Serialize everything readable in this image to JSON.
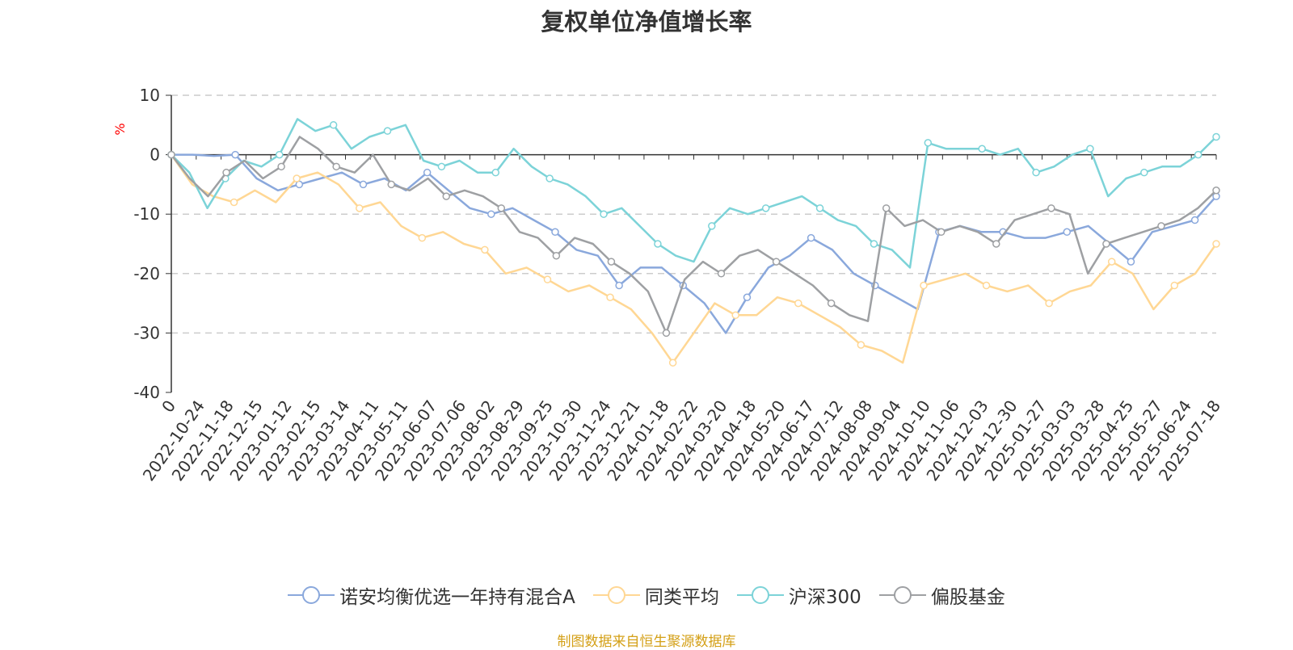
{
  "title": "复权单位净值增长率",
  "source": "制图数据来自恒生聚源数据库",
  "chart_data": {
    "type": "line",
    "ylabel": "%",
    "ylim": [
      -40,
      10
    ],
    "yticks": [
      10,
      0,
      -10,
      -20,
      -30,
      -40
    ],
    "grid": true,
    "legend_position": "bottom",
    "x_tick_labels": [
      "0",
      "2022-10-24",
      "2022-11-18",
      "2022-12-15",
      "2023-01-12",
      "2023-02-15",
      "2023-03-14",
      "2023-04-11",
      "2023-05-11",
      "2023-06-07",
      "2023-07-06",
      "2023-08-02",
      "2023-08-29",
      "2023-09-25",
      "2023-10-30",
      "2023-11-24",
      "2023-12-21",
      "2024-01-18",
      "2024-02-22",
      "2024-03-20",
      "2024-04-18",
      "2024-05-20",
      "2024-06-17",
      "2024-07-12",
      "2024-08-08",
      "2024-09-04",
      "2024-10-10",
      "2024-11-06",
      "2024-12-03",
      "2024-12-30",
      "2025-01-27",
      "2025-03-03",
      "2025-03-28",
      "2025-04-25",
      "2025-05-27",
      "2025-06-24",
      "2025-07-18"
    ],
    "series": [
      {
        "name": "诺安均衡优选一年持有混合A",
        "color": "#8aa8dc",
        "values": [
          0,
          0,
          -0.2,
          0,
          -4,
          -6,
          -5,
          -4,
          -3,
          -5,
          -4,
          -6,
          -3,
          -6,
          -9,
          -10,
          -9,
          -11,
          -13,
          -16,
          -17,
          -22,
          -19,
          -19,
          -22,
          -25,
          -30,
          -24,
          -19,
          -17,
          -14,
          -16,
          -20,
          -22,
          -24,
          -26,
          -13,
          -12,
          -13,
          -13,
          -14,
          -14,
          -13,
          -12,
          -15,
          -18,
          -13,
          -12,
          -11,
          -7
        ]
      },
      {
        "name": "同类平均",
        "color": "#ffd794",
        "values": [
          0,
          -5,
          -7,
          -8,
          -6,
          -8,
          -4,
          -3,
          -5,
          -9,
          -8,
          -12,
          -14,
          -13,
          -15,
          -16,
          -20,
          -19,
          -21,
          -23,
          -22,
          -24,
          -26,
          -30,
          -35,
          -30,
          -25,
          -27,
          -27,
          -24,
          -25,
          -27,
          -29,
          -32,
          -33,
          -35,
          -22,
          -21,
          -20,
          -22,
          -23,
          -22,
          -25,
          -23,
          -22,
          -18,
          -20,
          -26,
          -22,
          -20,
          -15
        ]
      },
      {
        "name": "沪深300",
        "color": "#7cd3d8",
        "values": [
          0,
          -3,
          -9,
          -4,
          -1,
          -2,
          0,
          6,
          4,
          5,
          1,
          3,
          4,
          5,
          -1,
          -2,
          -1,
          -3,
          -3,
          1,
          -2,
          -4,
          -5,
          -7,
          -10,
          -9,
          -12,
          -15,
          -17,
          -18,
          -12,
          -9,
          -10,
          -9,
          -8,
          -7,
          -9,
          -11,
          -12,
          -15,
          -16,
          -19,
          2,
          1,
          1,
          1,
          0,
          1,
          -3,
          -2,
          0,
          1,
          -7,
          -4,
          -3,
          -2,
          -2,
          0,
          3
        ]
      },
      {
        "name": "偏股基金",
        "color": "#9ea0a3",
        "values": [
          0,
          -4,
          -7,
          -3,
          -1,
          -4,
          -2,
          3,
          1,
          -2,
          -3,
          0,
          -5,
          -6,
          -4,
          -7,
          -6,
          -7,
          -9,
          -13,
          -14,
          -17,
          -14,
          -15,
          -18,
          -20,
          -23,
          -30,
          -21,
          -18,
          -20,
          -17,
          -16,
          -18,
          -20,
          -22,
          -25,
          -27,
          -28,
          -9,
          -12,
          -11,
          -13,
          -12,
          -13,
          -15,
          -11,
          -10,
          -9,
          -10,
          -20,
          -15,
          -14,
          -13,
          -12,
          -11,
          -9,
          -6
        ]
      }
    ]
  }
}
